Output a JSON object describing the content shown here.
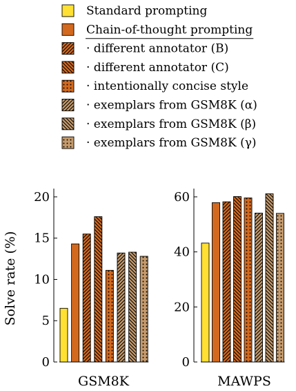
{
  "legend": [
    {
      "label": "Standard prompting",
      "pattern": "solid",
      "color": "#ffe033",
      "underline": false
    },
    {
      "label": "Chain-of-thought prompting",
      "pattern": "solid",
      "color": "#d2691e",
      "underline": true
    },
    {
      "label": "· different annotator (B)",
      "pattern": "hatch-ne",
      "color": "#d2691e",
      "underline": false
    },
    {
      "label": "· different annotator (C)",
      "pattern": "hatch-nw",
      "color": "#d2691e",
      "underline": false
    },
    {
      "label": "· intentionally concise style",
      "pattern": "dots",
      "color": "#d2691e",
      "underline": false
    },
    {
      "label": "· exemplars from GSM8K (α)",
      "pattern": "hatch-ne",
      "color": "#c49a6c",
      "underline": false
    },
    {
      "label": "· exemplars from GSM8K (β)",
      "pattern": "hatch-nw",
      "color": "#c49a6c",
      "underline": false
    },
    {
      "label": "· exemplars from GSM8K (γ)",
      "pattern": "dots",
      "color": "#c49a6c",
      "underline": false
    }
  ],
  "chart_data": [
    {
      "type": "bar",
      "xlabel": "GSM8K",
      "ylabel": "Solve rate (%)",
      "ylim": [
        0,
        21
      ],
      "yticks": [
        0,
        5,
        10,
        15,
        20
      ],
      "grid": false,
      "series": [
        {
          "name": "Standard prompting",
          "values": [
            6.5
          ]
        },
        {
          "name": "Chain-of-thought prompting",
          "values": [
            14.3
          ]
        },
        {
          "name": "· different annotator (B)",
          "values": [
            15.5
          ]
        },
        {
          "name": "· different annotator (C)",
          "values": [
            17.6
          ]
        },
        {
          "name": "· intentionally concise style",
          "values": [
            11.1
          ]
        },
        {
          "name": "· exemplars from GSM8K (α)",
          "values": [
            13.2
          ]
        },
        {
          "name": "· exemplars from GSM8K (β)",
          "values": [
            13.3
          ]
        },
        {
          "name": "· exemplars from GSM8K (γ)",
          "values": [
            12.8
          ]
        }
      ]
    },
    {
      "type": "bar",
      "xlabel": "MAWPS",
      "ylabel": "",
      "ylim": [
        0,
        63
      ],
      "yticks": [
        0,
        20,
        40,
        60
      ],
      "grid": false,
      "series": [
        {
          "name": "Standard prompting",
          "values": [
            43.2
          ]
        },
        {
          "name": "Chain-of-thought prompting",
          "values": [
            57.9
          ]
        },
        {
          "name": "· different annotator (B)",
          "values": [
            58.2
          ]
        },
        {
          "name": "· different annotator (C)",
          "values": [
            60.1
          ]
        },
        {
          "name": "· intentionally concise style",
          "values": [
            59.6
          ]
        },
        {
          "name": "· exemplars from GSM8K (α)",
          "values": [
            54.1
          ]
        },
        {
          "name": "· exemplars from GSM8K (β)",
          "values": [
            61.1
          ]
        },
        {
          "name": "· exemplars from GSM8K (γ)",
          "values": [
            54.0
          ]
        }
      ]
    }
  ]
}
